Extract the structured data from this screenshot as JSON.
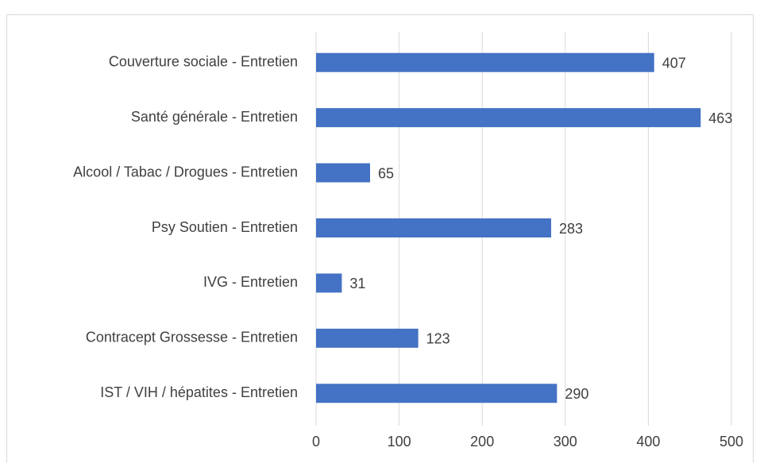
{
  "chart_data": {
    "type": "bar",
    "categories": [
      "Couverture sociale - Entretien",
      "Santé générale - Entretien",
      "Alcool / Tabac / Drogues - Entretien",
      "Psy Soutien - Entretien",
      "IVG - Entretien",
      "Contracept Grossesse - Entretien",
      "IST / VIH / hépatites - Entretien"
    ],
    "values": [
      407,
      463,
      65,
      283,
      31,
      123,
      290
    ],
    "color": "#4472c4",
    "xlim": [
      0,
      500
    ],
    "xticks": [
      0,
      100,
      200,
      300,
      400,
      500
    ],
    "grid": true
  }
}
